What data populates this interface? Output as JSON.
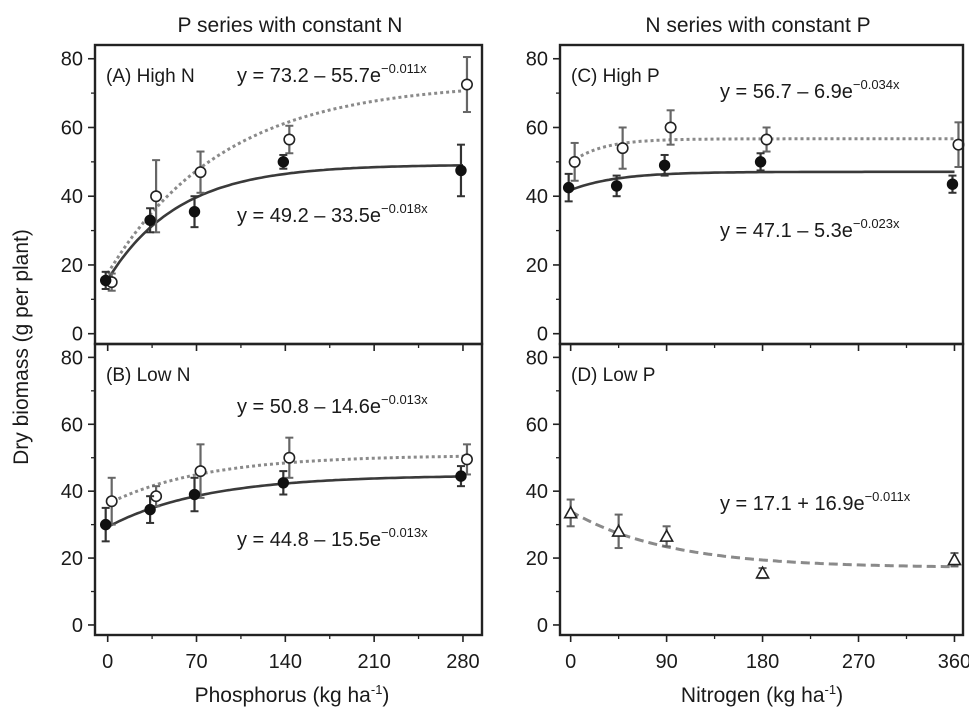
{
  "figure": {
    "col_titles": [
      "P series with constant N",
      "N series with constant P"
    ],
    "ylabel": "Dry biomass (g per plant)",
    "xlabel_left": "Phosphorus (kg ha",
    "xlabel_right": "Nitrogen (kg ha",
    "xlabel_unit_sup": "-1",
    "xlabel_close": ")"
  },
  "chart_data": [
    {
      "type": "scatter",
      "panel": "A",
      "label": "(A) High N",
      "xlabel": "Phosphorus (kg ha-1)",
      "ylabel": "Dry biomass (g per plant)",
      "xlim": [
        -10,
        295
      ],
      "ylim": [
        -3,
        84
      ],
      "xticks": [
        0,
        70,
        140,
        210,
        280
      ],
      "yticks": [
        0,
        20,
        40,
        60,
        80
      ],
      "show_xtick_labels": false,
      "series": [
        {
          "marker": "open-circle",
          "line": "dotted",
          "x": [
            0,
            35,
            70,
            140,
            280
          ],
          "y": [
            15,
            40,
            47,
            56.5,
            72.5
          ],
          "err": [
            2.5,
            10.5,
            6,
            4,
            8
          ],
          "fit": {
            "a": 73.2,
            "b": -55.7,
            "k": -0.011
          },
          "eq_text": "y = 73.2 – 55.7e",
          "eq_sup": "−0.011x"
        },
        {
          "marker": "filled-circle",
          "line": "solid",
          "x": [
            0,
            35,
            70,
            140,
            280
          ],
          "y": [
            15.5,
            33,
            35.5,
            50,
            47.5
          ],
          "err": [
            2.5,
            3.5,
            4.5,
            2,
            7.5
          ],
          "fit": {
            "a": 49.2,
            "b": -33.5,
            "k": -0.018
          },
          "eq_text": "y = 49.2 – 33.5e",
          "eq_sup": "−0.018x"
        }
      ]
    },
    {
      "type": "scatter",
      "panel": "B",
      "label": "(B) Low N",
      "xlabel": "Phosphorus (kg ha-1)",
      "ylabel": "Dry biomass (g per plant)",
      "xlim": [
        -10,
        295
      ],
      "ylim": [
        -3,
        84
      ],
      "xticks": [
        0,
        70,
        140,
        210,
        280
      ],
      "yticks": [
        0,
        20,
        40,
        60,
        80
      ],
      "show_xtick_labels": true,
      "series": [
        {
          "marker": "open-circle",
          "line": "dotted",
          "x": [
            0,
            35,
            70,
            140,
            280
          ],
          "y": [
            37,
            38.5,
            46,
            50,
            49.5
          ],
          "err": [
            7,
            3,
            8,
            6,
            4.5
          ],
          "fit": {
            "a": 50.8,
            "b": -14.6,
            "k": -0.013
          },
          "eq_text": "y = 50.8 – 14.6e",
          "eq_sup": "−0.013x"
        },
        {
          "marker": "filled-circle",
          "line": "solid",
          "x": [
            0,
            35,
            70,
            140,
            280
          ],
          "y": [
            30,
            34.5,
            39,
            42.5,
            44.5
          ],
          "err": [
            5,
            4,
            5,
            3.5,
            3
          ],
          "fit": {
            "a": 44.8,
            "b": -15.5,
            "k": -0.013
          },
          "eq_text": "y = 44.8 – 15.5e",
          "eq_sup": "−0.013x"
        }
      ]
    },
    {
      "type": "scatter",
      "panel": "C",
      "label": "(C) High P",
      "xlabel": "Nitrogen (kg ha-1)",
      "ylabel": "Dry biomass (g per plant)",
      "xlim": [
        -10,
        368
      ],
      "ylim": [
        -3,
        84
      ],
      "xticks": [
        0,
        90,
        180,
        270,
        360
      ],
      "yticks": [
        0,
        20,
        40,
        60,
        80
      ],
      "show_xtick_labels": false,
      "series": [
        {
          "marker": "open-circle",
          "line": "dotted",
          "x": [
            0,
            45,
            90,
            180,
            360
          ],
          "y": [
            50,
            54,
            60,
            56.5,
            55
          ],
          "err": [
            5.5,
            6,
            5,
            3.5,
            6.5
          ],
          "fit": {
            "a": 56.7,
            "b": -6.9,
            "k": -0.034
          },
          "eq_text": "y = 56.7 – 6.9e",
          "eq_sup": "−0.034x"
        },
        {
          "marker": "filled-circle",
          "line": "solid",
          "x": [
            0,
            45,
            90,
            180,
            360
          ],
          "y": [
            42.5,
            43,
            49,
            50,
            43.5
          ],
          "err": [
            4,
            3,
            3,
            2.5,
            2.5
          ],
          "fit": {
            "a": 47.1,
            "b": -5.3,
            "k": -0.023
          },
          "eq_text": "y = 47.1 – 5.3e",
          "eq_sup": "−0.023x"
        }
      ]
    },
    {
      "type": "scatter",
      "panel": "D",
      "label": "(D) Low P",
      "xlabel": "Nitrogen (kg ha-1)",
      "ylabel": "Dry biomass (g per plant)",
      "xlim": [
        -10,
        368
      ],
      "ylim": [
        -3,
        84
      ],
      "xticks": [
        0,
        90,
        180,
        270,
        360
      ],
      "yticks": [
        0,
        20,
        40,
        60,
        80
      ],
      "show_xtick_labels": true,
      "series": [
        {
          "marker": "open-triangle",
          "line": "dashed",
          "x": [
            0,
            45,
            90,
            180,
            360
          ],
          "y": [
            33.5,
            28,
            26.5,
            15.5,
            19.5
          ],
          "err": [
            4,
            5,
            3,
            1.5,
            2
          ],
          "fit": {
            "a": 17.1,
            "b": 16.9,
            "k": -0.011
          },
          "eq_text": "y = 17.1 + 16.9e",
          "eq_sup": "−0.011x"
        }
      ]
    }
  ]
}
